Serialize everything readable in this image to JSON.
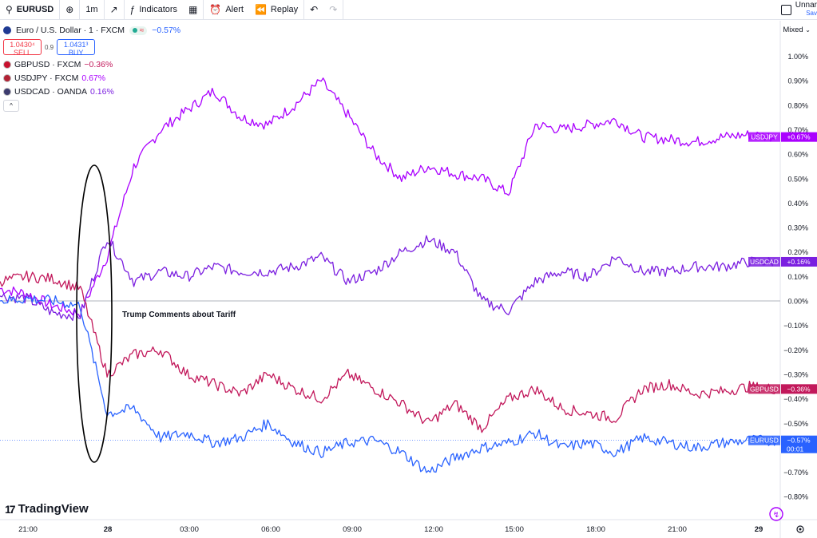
{
  "toolbar": {
    "symbol": "EURUSD",
    "interval": "1m",
    "indicators": "Indicators",
    "alert": "Alert",
    "replay": "Replay",
    "layout_name": "Unnar",
    "layout_sub": "Sav"
  },
  "legend": {
    "title": "Euro / U.S. Dollar · 1 · FXCM",
    "change": "−0.57%",
    "sell_price": "1.0430⁴",
    "sell_label": "SELL",
    "spread": "0.9",
    "buy_price": "1.0431³",
    "buy_label": "BUY",
    "series": [
      {
        "label": "GBPUSD · FXCM",
        "value": "−0.36%",
        "color": "#c2185b"
      },
      {
        "label": "USDJPY · FXCM",
        "value": "0.67%",
        "color": "#aa00ff"
      },
      {
        "label": "USDCAD · OANDA",
        "value": "0.16%",
        "color": "#7b1fe0"
      }
    ],
    "collapse": "^"
  },
  "scale_mode": "Mixed",
  "brand": "TradingView",
  "chart_data": {
    "type": "line",
    "y_unit": "%",
    "ylim": [
      -0.85,
      1.05
    ],
    "y_ticks": [
      "1.00%",
      "0.90%",
      "0.80%",
      "0.70%",
      "0.60%",
      "0.50%",
      "0.40%",
      "0.30%",
      "0.20%",
      "0.10%",
      "0.00%",
      "−0.10%",
      "−0.20%",
      "−0.30%",
      "−0.40%",
      "−0.50%",
      "−0.60%",
      "−0.70%",
      "−0.80%"
    ],
    "x_ticks": [
      "21:00",
      "28",
      "03:00",
      "06:00",
      "09:00",
      "12:00",
      "15:00",
      "18:00",
      "21:00",
      "29"
    ],
    "annotation": "Trump Comments about Tariff",
    "x": [
      "20:00",
      "21:00",
      "22:00",
      "23:00",
      "00:00",
      "01:00",
      "02:00",
      "03:00",
      "04:00",
      "05:00",
      "06:00",
      "07:00",
      "08:00",
      "09:00",
      "10:00",
      "11:00",
      "12:00",
      "13:00",
      "14:00",
      "15:00",
      "16:00",
      "17:00",
      "18:00",
      "19:00",
      "20:00",
      "21:00",
      "22:00",
      "23:00",
      "00:00",
      "00:30"
    ],
    "series": [
      {
        "name": "USDJPY",
        "color": "#aa00ff",
        "tag": "USDJPY",
        "tag_value": "+0.67%",
        "values": [
          0.05,
          0.03,
          -0.02,
          -0.05,
          0.18,
          0.55,
          0.7,
          0.78,
          0.86,
          0.75,
          0.72,
          0.8,
          0.9,
          0.76,
          0.6,
          0.5,
          0.55,
          0.52,
          0.5,
          0.44,
          0.72,
          0.7,
          0.72,
          0.74,
          0.67,
          0.66,
          0.65,
          0.67,
          0.68,
          0.67
        ]
      },
      {
        "name": "USDCAD",
        "color": "#7b1fe0",
        "tag": "USDCAD",
        "tag_value": "+0.16%",
        "values": [
          0.02,
          0.01,
          -0.05,
          -0.06,
          0.26,
          0.08,
          0.12,
          0.1,
          0.14,
          0.12,
          0.12,
          0.14,
          0.18,
          0.08,
          0.12,
          0.2,
          0.25,
          0.2,
          0.0,
          -0.04,
          0.08,
          0.12,
          0.1,
          0.18,
          0.12,
          0.12,
          0.14,
          0.14,
          0.16,
          0.16
        ]
      },
      {
        "name": "GBPUSD",
        "color": "#c2185b",
        "tag": "GBPUSD",
        "tag_value": "−0.36%",
        "values": [
          0.08,
          0.1,
          0.09,
          0.05,
          -0.3,
          -0.22,
          -0.2,
          -0.3,
          -0.34,
          -0.38,
          -0.3,
          -0.36,
          -0.4,
          -0.3,
          -0.36,
          -0.42,
          -0.5,
          -0.42,
          -0.52,
          -0.4,
          -0.36,
          -0.44,
          -0.46,
          -0.48,
          -0.36,
          -0.34,
          -0.38,
          -0.37,
          -0.35,
          -0.36
        ]
      },
      {
        "name": "EURUSD",
        "color": "#2962ff",
        "tag": "EURUSD",
        "tag_value": "−0.57%",
        "tag_extra": "00:01",
        "values": [
          0.0,
          0.01,
          0.0,
          -0.02,
          -0.46,
          -0.44,
          -0.56,
          -0.54,
          -0.58,
          -0.56,
          -0.5,
          -0.58,
          -0.62,
          -0.58,
          -0.57,
          -0.62,
          -0.7,
          -0.64,
          -0.6,
          -0.58,
          -0.54,
          -0.6,
          -0.58,
          -0.62,
          -0.56,
          -0.58,
          -0.6,
          -0.58,
          -0.57,
          -0.57
        ]
      }
    ]
  }
}
